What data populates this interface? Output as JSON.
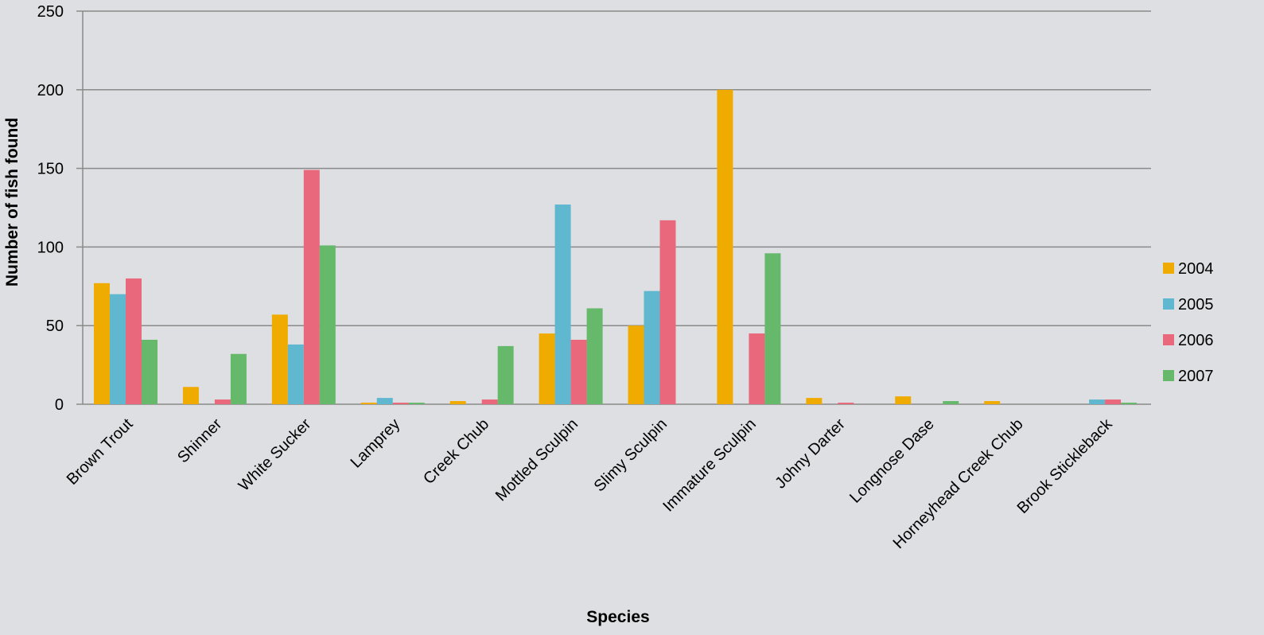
{
  "chart_data": {
    "type": "bar",
    "title": "",
    "xlabel": "Species",
    "ylabel": "Number of fish found",
    "ylim": [
      0,
      250
    ],
    "yticks": [
      0,
      50,
      100,
      150,
      200,
      250
    ],
    "grid": true,
    "legend_position": "right",
    "categories": [
      "Brown Trout",
      "Shinner",
      "White Sucker",
      "Lamprey",
      "Creek Chub",
      "Mottled Sculpin",
      "Slimy Sculpin",
      "Immature Sculpin",
      "Johny Darter",
      "Longnose Dase",
      "Horneyhead Creek Chub",
      "Brook Stickleback"
    ],
    "series": [
      {
        "name": "2004",
        "color": "#f0ab00",
        "values": [
          77,
          11,
          57,
          1,
          2,
          45,
          50,
          200,
          4,
          5,
          2,
          0
        ]
      },
      {
        "name": "2005",
        "color": "#5fb7d0",
        "values": [
          70,
          0,
          38,
          4,
          0,
          127,
          72,
          0,
          0,
          0,
          0,
          3
        ]
      },
      {
        "name": "2006",
        "color": "#e9687b",
        "values": [
          80,
          3,
          149,
          1,
          3,
          41,
          117,
          45,
          1,
          0,
          0,
          3
        ]
      },
      {
        "name": "2007",
        "color": "#66b96b",
        "values": [
          41,
          32,
          101,
          1,
          37,
          61,
          0,
          96,
          0,
          2,
          0,
          1
        ]
      }
    ]
  }
}
